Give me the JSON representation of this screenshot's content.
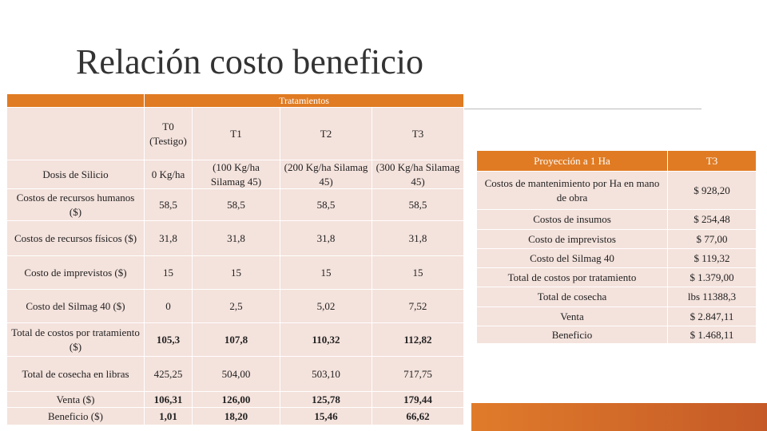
{
  "title": "Relación costo beneficio",
  "left_table": {
    "group_header": "Tratamientos",
    "columns": [
      "T0 (Testigo)",
      "T1",
      "T2",
      "T3"
    ],
    "rows": [
      {
        "label": "Dosis de Silicio",
        "cells": [
          "0 Kg/ha",
          "(100 Kg/ha Silamag 45)",
          "(200 Kg/ha Silamag 45)",
          "(300 Kg/ha Silamag 45)"
        ]
      },
      {
        "label": "Costos de recursos humanos ($)",
        "cells": [
          "58,5",
          "58,5",
          "58,5",
          "58,5"
        ]
      },
      {
        "label": "Costos de recursos físicos ($)",
        "cells": [
          "31,8",
          "31,8",
          "31,8",
          "31,8"
        ]
      },
      {
        "label": "Costo de imprevistos ($)",
        "cells": [
          "15",
          "15",
          "15",
          "15"
        ]
      },
      {
        "label": "Costo del Silmag 40 ($)",
        "cells": [
          "0",
          "2,5",
          "5,02",
          "7,52"
        ]
      },
      {
        "label": "Total de costos por tratamiento ($)",
        "cells": [
          "105,3",
          "107,8",
          "110,32",
          "112,82"
        ]
      },
      {
        "label": "Total de cosecha en libras",
        "cells": [
          "425,25",
          "504,00",
          "503,10",
          "717,75"
        ]
      },
      {
        "label": "Venta ($)",
        "cells": [
          "106,31",
          "126,00",
          "125,78",
          "179,44"
        ]
      },
      {
        "label": "Beneficio ($)",
        "cells": [
          "1,01",
          "18,20",
          "15,46",
          "66,62"
        ]
      }
    ]
  },
  "right_table": {
    "header": [
      "Proyección a 1 Ha",
      "T3"
    ],
    "rows": [
      [
        "Costos de mantenimiento por Ha en mano de obra",
        "$ 928,20"
      ],
      [
        "Costos de insumos",
        "$ 254,48"
      ],
      [
        "Costo de imprevistos",
        "$ 77,00"
      ],
      [
        "Costo del Silmag 40",
        "$ 119,32"
      ],
      [
        "Total de costos por tratamiento",
        "$ 1.379,00"
      ],
      [
        "Total de cosecha",
        "lbs 11388,3"
      ],
      [
        "Venta",
        "$ 2.847,11"
      ],
      [
        "Beneficio",
        "$ 1.468,11"
      ]
    ]
  }
}
